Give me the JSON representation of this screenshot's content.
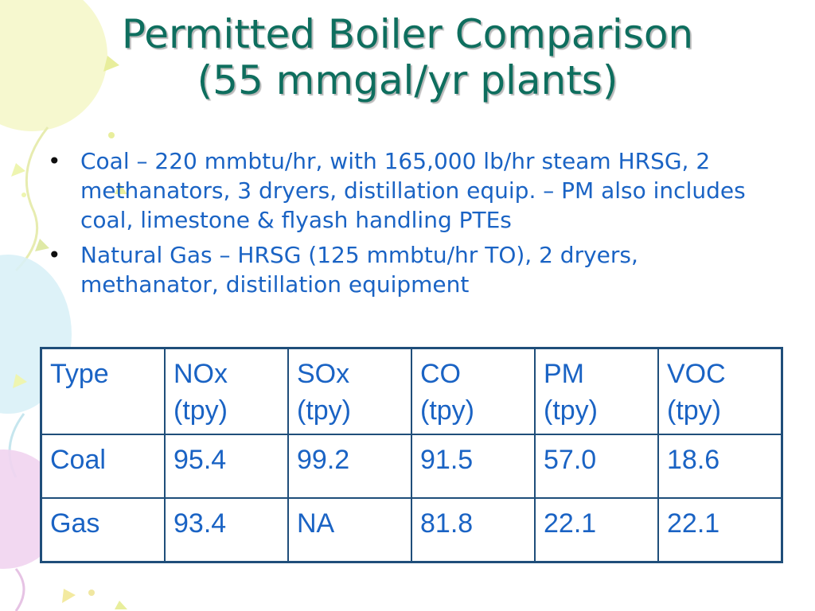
{
  "slide": {
    "title_line1": "Permitted Boiler Comparison",
    "title_line2": "(55 mmgal/yr plants)",
    "bullets": [
      "Coal – 220 mmbtu/hr, with 165,000 lb/hr steam HRSG, 2 methanators, 3 dryers, distillation equip. – PM also includes coal, limestone & flyash handling PTEs",
      "Natural Gas – HRSG (125 mmbtu/hr TO), 2 dryers, methanator, distillation equipment"
    ]
  },
  "table": {
    "headers": [
      [
        "Type",
        ""
      ],
      [
        "NOx",
        "(tpy)"
      ],
      [
        "SOx",
        "(tpy)"
      ],
      [
        "CO",
        "(tpy)"
      ],
      [
        "PM",
        "(tpy)"
      ],
      [
        "VOC",
        "(tpy)"
      ]
    ],
    "rows": [
      [
        "Coal",
        "95.4",
        "99.2",
        "91.5",
        "57.0",
        "18.6"
      ],
      [
        "Gas",
        "93.4",
        "NA",
        "81.8",
        "22.1",
        "22.1"
      ]
    ]
  },
  "colors": {
    "title": "#0e6e5e",
    "body_text": "#1a63c4",
    "table_border": "#1f4e7a",
    "balloon_yellow": "#f4f7c7",
    "balloon_blue": "#d9f1f7",
    "balloon_pink": "#f1d4f0"
  }
}
